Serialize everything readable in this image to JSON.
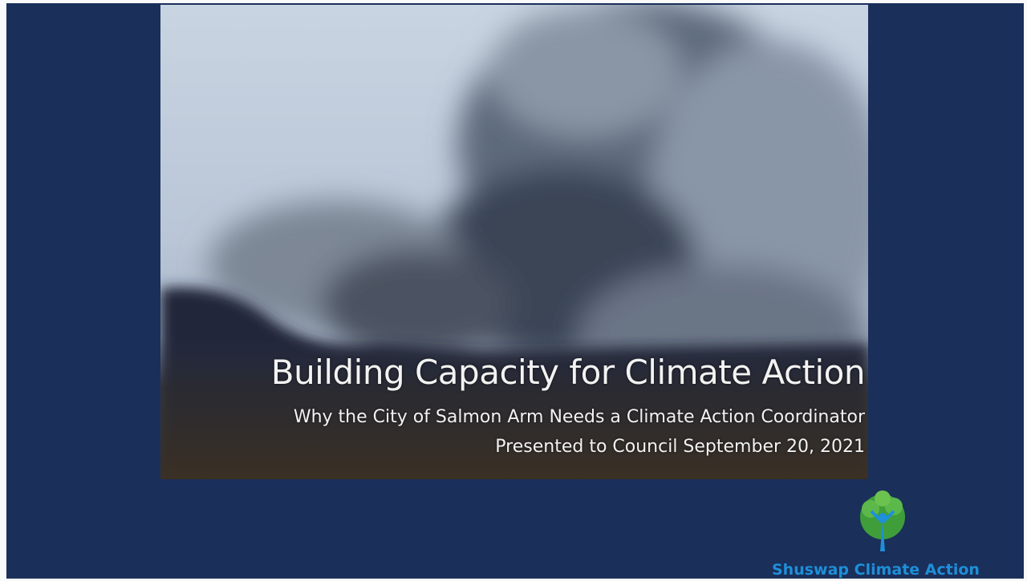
{
  "slide": {
    "title": "Building Capacity for Climate Action",
    "subtitle": "Why the City of Salmon Arm Needs a Climate Action Coordinator",
    "presented": "Presented to Council September 20, 2021",
    "logo_text": "Shuswap Climate Action"
  }
}
